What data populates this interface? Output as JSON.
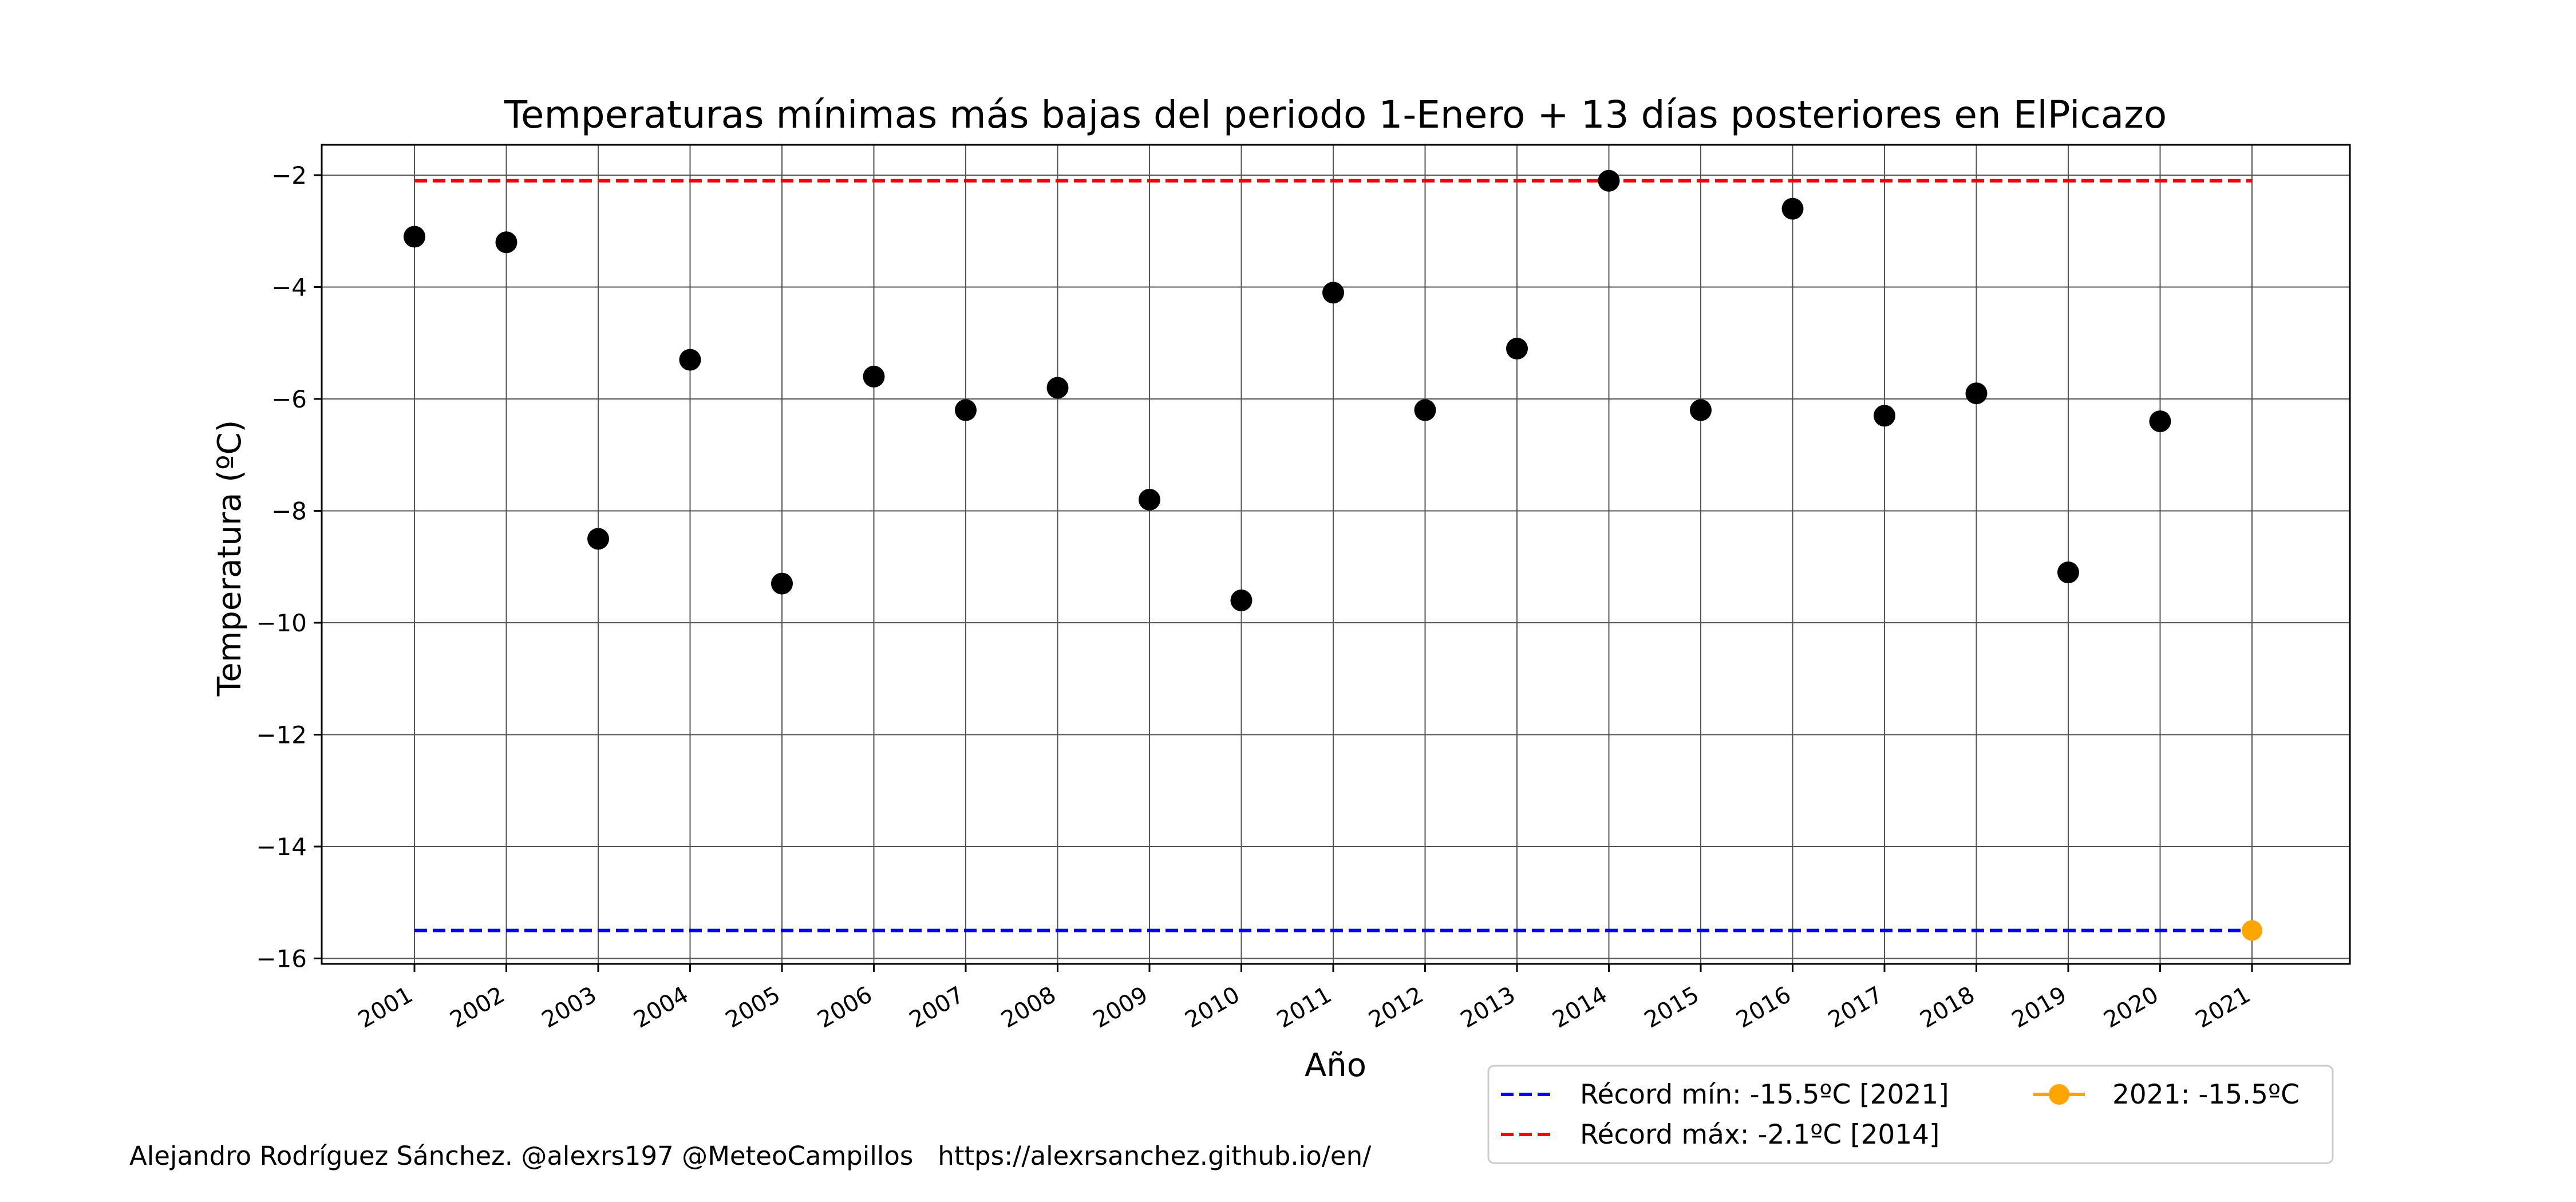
{
  "chart_data": {
    "type": "scatter",
    "title": "Temperaturas mínimas más bajas del periodo 1-Enero + 13 días posteriores en ElPicazo",
    "xlabel": "Año",
    "ylabel": "Temperatura (ºC)",
    "x": [
      "2001",
      "2002",
      "2003",
      "2004",
      "2005",
      "2006",
      "2007",
      "2008",
      "2009",
      "2010",
      "2011",
      "2012",
      "2013",
      "2014",
      "2015",
      "2016",
      "2017",
      "2018",
      "2019",
      "2020",
      "2021"
    ],
    "y_ticks": [
      "−2",
      "−4",
      "−6",
      "−8",
      "−10",
      "−12",
      "−14",
      "−16"
    ],
    "ylim": [
      -16.2,
      -1.5
    ],
    "grid": true,
    "legend_position": "bottom-right, below axes",
    "series": [
      {
        "values": [
          -3.1,
          -3.2,
          -8.5,
          -5.3,
          -9.3,
          -5.6,
          -6.2,
          -5.8,
          -7.8,
          -9.6,
          -4.1,
          -6.2,
          -5.1,
          -2.1,
          -6.2,
          -2.6,
          -6.3,
          -5.9,
          -9.1,
          -6.4
        ],
        "color": "#000000"
      },
      {
        "name": "2021: -15.5ºC",
        "x": "2021",
        "value": -15.5,
        "color": "#ffa500"
      }
    ],
    "reference_lines": [
      {
        "name": "Récord mín: -15.5ºC [2021]",
        "value": -15.5,
        "color": "#0000ff",
        "style": "dashed"
      },
      {
        "name": "Récord máx: -2.1ºC [2014]",
        "value": -2.1,
        "color": "#ff0000",
        "style": "dashed"
      }
    ]
  },
  "footer": {
    "credit": "Alejandro Rodríguez Sánchez. @alexrs197 @MeteoCampillos   https://alexrsanchez.github.io/en/"
  }
}
